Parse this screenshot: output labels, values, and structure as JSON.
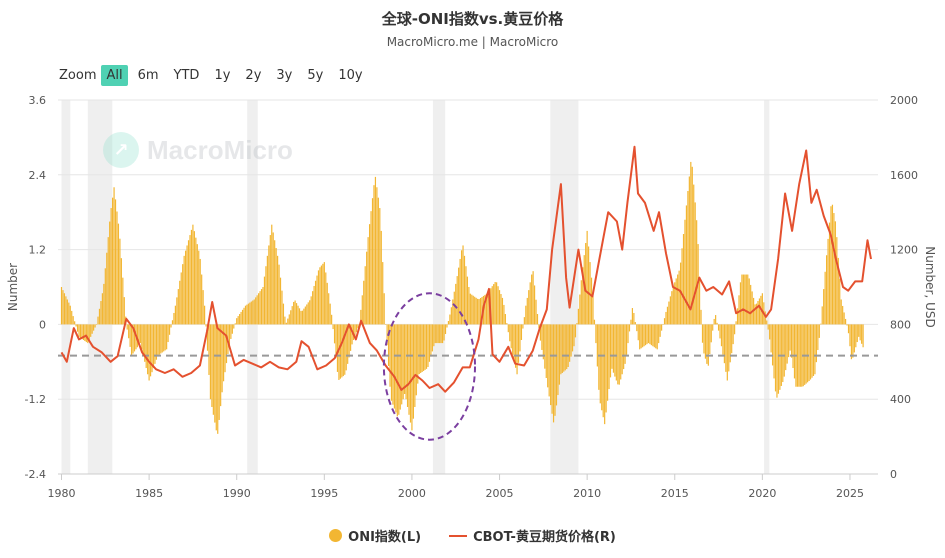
{
  "header": {
    "title": "全球-ONI指数vs.黄豆价格",
    "subtitle": "MacroMicro.me | MacroMicro"
  },
  "zoom": {
    "label": "Zoom",
    "buttons": [
      "All",
      "6m",
      "YTD",
      "1y",
      "2y",
      "3y",
      "5y",
      "10y"
    ],
    "active": "All"
  },
  "watermark": {
    "text": "MacroMicro"
  },
  "colors": {
    "oni": "#f2b632",
    "cbot": "#e4512f",
    "shade": "#efefef",
    "ref_line": "#999999",
    "ellipse": "#7b3fa0"
  },
  "chart_data": {
    "type": "line",
    "x_axis": {
      "type": "year",
      "range": [
        1979.8,
        2026.6
      ],
      "ticks": [
        "1980",
        "1985",
        "1990",
        "1995",
        "2000",
        "2005",
        "2010",
        "2015",
        "2020",
        "2025"
      ]
    },
    "y_left": {
      "label": "Number",
      "range": [
        -2.4,
        3.6
      ],
      "ticks": [
        "3.6",
        "2.4",
        "1.2",
        "0",
        "-1.2",
        "-2.4"
      ]
    },
    "y_right": {
      "label": "Number, USD",
      "range": [
        0,
        2000
      ],
      "ticks": [
        "2000",
        "1600",
        "1200",
        "800",
        "400",
        "0"
      ]
    },
    "reference_line": {
      "axis": "left",
      "value": -0.5,
      "style": "dashed"
    },
    "recessions": [
      [
        1980.0,
        1980.5
      ],
      [
        1981.5,
        1982.9
      ],
      [
        1990.6,
        1991.2
      ],
      [
        2001.2,
        2001.9
      ],
      [
        2007.9,
        2009.5
      ],
      [
        2020.1,
        2020.4
      ]
    ],
    "highlight_ellipse": {
      "x_range": [
        1998.4,
        2003.6
      ],
      "y_left_range": [
        -1.85,
        0.5
      ]
    },
    "series": [
      {
        "name": "ONI指数(L)",
        "type": "column",
        "axis": "left",
        "points": [
          [
            1980.0,
            0.6
          ],
          [
            1980.5,
            0.3
          ],
          [
            1981.0,
            -0.2
          ],
          [
            1981.5,
            -0.3
          ],
          [
            1982.0,
            0.0
          ],
          [
            1982.4,
            0.6
          ],
          [
            1982.8,
            1.8
          ],
          [
            1983.0,
            2.2
          ],
          [
            1983.3,
            1.5
          ],
          [
            1983.7,
            0.0
          ],
          [
            1984.0,
            -0.5
          ],
          [
            1984.5,
            -0.3
          ],
          [
            1985.0,
            -0.9
          ],
          [
            1985.5,
            -0.5
          ],
          [
            1986.0,
            -0.4
          ],
          [
            1986.5,
            0.3
          ],
          [
            1987.0,
            1.1
          ],
          [
            1987.5,
            1.6
          ],
          [
            1987.9,
            1.1
          ],
          [
            1988.2,
            0.2
          ],
          [
            1988.5,
            -1.2
          ],
          [
            1988.9,
            -1.8
          ],
          [
            1989.2,
            -1.0
          ],
          [
            1989.6,
            -0.3
          ],
          [
            1990.0,
            0.1
          ],
          [
            1990.5,
            0.3
          ],
          [
            1991.0,
            0.4
          ],
          [
            1991.5,
            0.6
          ],
          [
            1992.0,
            1.6
          ],
          [
            1992.4,
            1.0
          ],
          [
            1992.8,
            0.0
          ],
          [
            1993.3,
            0.4
          ],
          [
            1993.7,
            0.2
          ],
          [
            1994.2,
            0.4
          ],
          [
            1994.7,
            0.9
          ],
          [
            1995.0,
            1.0
          ],
          [
            1995.4,
            0.2
          ],
          [
            1995.8,
            -0.9
          ],
          [
            1996.2,
            -0.8
          ],
          [
            1996.6,
            -0.3
          ],
          [
            1997.0,
            0.0
          ],
          [
            1997.5,
            1.4
          ],
          [
            1997.9,
            2.4
          ],
          [
            1998.2,
            1.8
          ],
          [
            1998.5,
            0.0
          ],
          [
            1998.8,
            -1.2
          ],
          [
            1999.2,
            -1.5
          ],
          [
            1999.6,
            -1.1
          ],
          [
            2000.0,
            -1.7
          ],
          [
            2000.4,
            -0.8
          ],
          [
            2000.9,
            -0.7
          ],
          [
            2001.3,
            -0.3
          ],
          [
            2001.8,
            -0.3
          ],
          [
            2002.2,
            0.2
          ],
          [
            2002.6,
            0.8
          ],
          [
            2002.9,
            1.3
          ],
          [
            2003.3,
            0.5
          ],
          [
            2003.8,
            0.4
          ],
          [
            2004.3,
            0.5
          ],
          [
            2004.8,
            0.7
          ],
          [
            2005.2,
            0.4
          ],
          [
            2005.6,
            -0.3
          ],
          [
            2006.0,
            -0.8
          ],
          [
            2006.5,
            0.3
          ],
          [
            2006.9,
            0.9
          ],
          [
            2007.3,
            -0.2
          ],
          [
            2007.8,
            -1.1
          ],
          [
            2008.1,
            -1.6
          ],
          [
            2008.5,
            -0.8
          ],
          [
            2008.9,
            -0.7
          ],
          [
            2009.3,
            -0.3
          ],
          [
            2009.7,
            0.8
          ],
          [
            2010.0,
            1.5
          ],
          [
            2010.3,
            0.6
          ],
          [
            2010.7,
            -1.2
          ],
          [
            2011.0,
            -1.6
          ],
          [
            2011.4,
            -0.7
          ],
          [
            2011.8,
            -1.0
          ],
          [
            2012.2,
            -0.6
          ],
          [
            2012.6,
            0.3
          ],
          [
            2013.0,
            -0.4
          ],
          [
            2013.5,
            -0.3
          ],
          [
            2014.0,
            -0.4
          ],
          [
            2014.5,
            0.2
          ],
          [
            2014.9,
            0.6
          ],
          [
            2015.3,
            0.9
          ],
          [
            2015.7,
            2.0
          ],
          [
            2015.95,
            2.7
          ],
          [
            2016.3,
            1.5
          ],
          [
            2016.6,
            -0.4
          ],
          [
            2016.9,
            -0.7
          ],
          [
            2017.3,
            0.2
          ],
          [
            2017.7,
            -0.4
          ],
          [
            2018.0,
            -0.9
          ],
          [
            2018.4,
            -0.2
          ],
          [
            2018.8,
            0.8
          ],
          [
            2019.2,
            0.8
          ],
          [
            2019.6,
            0.3
          ],
          [
            2020.0,
            0.5
          ],
          [
            2020.4,
            -0.2
          ],
          [
            2020.8,
            -1.2
          ],
          [
            2021.2,
            -0.9
          ],
          [
            2021.6,
            -0.4
          ],
          [
            2021.9,
            -1.0
          ],
          [
            2022.3,
            -1.0
          ],
          [
            2022.7,
            -0.9
          ],
          [
            2023.0,
            -0.8
          ],
          [
            2023.3,
            -0.1
          ],
          [
            2023.6,
            0.9
          ],
          [
            2023.95,
            2.0
          ],
          [
            2024.2,
            1.6
          ],
          [
            2024.5,
            0.4
          ],
          [
            2024.9,
            -0.1
          ],
          [
            2025.1,
            -0.6
          ],
          [
            2025.5,
            -0.2
          ],
          [
            2025.8,
            -0.4
          ]
        ]
      },
      {
        "name": "CBOT-黄豆期货价格(R)",
        "type": "line",
        "axis": "right",
        "points": [
          [
            1980.0,
            650
          ],
          [
            1980.3,
            600
          ],
          [
            1980.7,
            780
          ],
          [
            1981.0,
            720
          ],
          [
            1981.4,
            740
          ],
          [
            1981.8,
            680
          ],
          [
            1982.3,
            650
          ],
          [
            1982.8,
            600
          ],
          [
            1983.2,
            630
          ],
          [
            1983.7,
            830
          ],
          [
            1984.1,
            780
          ],
          [
            1984.6,
            650
          ],
          [
            1985.0,
            600
          ],
          [
            1985.4,
            560
          ],
          [
            1985.9,
            540
          ],
          [
            1986.4,
            560
          ],
          [
            1986.9,
            520
          ],
          [
            1987.4,
            540
          ],
          [
            1987.9,
            580
          ],
          [
            1988.3,
            760
          ],
          [
            1988.6,
            920
          ],
          [
            1988.9,
            780
          ],
          [
            1989.4,
            740
          ],
          [
            1989.9,
            580
          ],
          [
            1990.4,
            610
          ],
          [
            1990.9,
            590
          ],
          [
            1991.4,
            570
          ],
          [
            1991.9,
            600
          ],
          [
            1992.4,
            570
          ],
          [
            1992.9,
            560
          ],
          [
            1993.4,
            600
          ],
          [
            1993.7,
            710
          ],
          [
            1994.1,
            680
          ],
          [
            1994.6,
            560
          ],
          [
            1995.1,
            580
          ],
          [
            1995.6,
            620
          ],
          [
            1996.0,
            700
          ],
          [
            1996.4,
            800
          ],
          [
            1996.8,
            720
          ],
          [
            1997.1,
            820
          ],
          [
            1997.6,
            700
          ],
          [
            1998.0,
            660
          ],
          [
            1998.5,
            580
          ],
          [
            1999.0,
            520
          ],
          [
            1999.4,
            450
          ],
          [
            1999.8,
            480
          ],
          [
            2000.2,
            530
          ],
          [
            2000.6,
            500
          ],
          [
            2001.0,
            460
          ],
          [
            2001.5,
            480
          ],
          [
            2001.9,
            440
          ],
          [
            2002.4,
            490
          ],
          [
            2002.9,
            570
          ],
          [
            2003.3,
            570
          ],
          [
            2003.8,
            720
          ],
          [
            2004.1,
            900
          ],
          [
            2004.4,
            990
          ],
          [
            2004.6,
            640
          ],
          [
            2005.0,
            600
          ],
          [
            2005.5,
            680
          ],
          [
            2005.9,
            590
          ],
          [
            2006.4,
            580
          ],
          [
            2006.9,
            660
          ],
          [
            2007.3,
            780
          ],
          [
            2007.7,
            880
          ],
          [
            2008.0,
            1200
          ],
          [
            2008.5,
            1550
          ],
          [
            2008.8,
            1050
          ],
          [
            2009.0,
            890
          ],
          [
            2009.5,
            1200
          ],
          [
            2009.9,
            980
          ],
          [
            2010.3,
            950
          ],
          [
            2010.9,
            1250
          ],
          [
            2011.2,
            1400
          ],
          [
            2011.7,
            1350
          ],
          [
            2012.0,
            1200
          ],
          [
            2012.3,
            1450
          ],
          [
            2012.7,
            1750
          ],
          [
            2012.9,
            1500
          ],
          [
            2013.3,
            1450
          ],
          [
            2013.8,
            1300
          ],
          [
            2014.1,
            1400
          ],
          [
            2014.5,
            1180
          ],
          [
            2014.9,
            1000
          ],
          [
            2015.3,
            980
          ],
          [
            2015.9,
            880
          ],
          [
            2016.4,
            1050
          ],
          [
            2016.8,
            980
          ],
          [
            2017.2,
            1000
          ],
          [
            2017.7,
            960
          ],
          [
            2018.1,
            1030
          ],
          [
            2018.5,
            860
          ],
          [
            2018.9,
            880
          ],
          [
            2019.3,
            860
          ],
          [
            2019.8,
            900
          ],
          [
            2020.2,
            840
          ],
          [
            2020.5,
            880
          ],
          [
            2020.9,
            1150
          ],
          [
            2021.3,
            1500
          ],
          [
            2021.7,
            1300
          ],
          [
            2022.1,
            1550
          ],
          [
            2022.5,
            1730
          ],
          [
            2022.8,
            1450
          ],
          [
            2023.1,
            1520
          ],
          [
            2023.5,
            1380
          ],
          [
            2023.9,
            1280
          ],
          [
            2024.2,
            1150
          ],
          [
            2024.6,
            1000
          ],
          [
            2024.9,
            980
          ],
          [
            2025.3,
            1030
          ],
          [
            2025.7,
            1030
          ],
          [
            2026.0,
            1250
          ],
          [
            2026.2,
            1150
          ]
        ]
      }
    ]
  },
  "legend": {
    "items": [
      {
        "label": "ONI指数(L)",
        "kind": "dot"
      },
      {
        "label": "CBOT-黄豆期货价格(R)",
        "kind": "line"
      }
    ]
  }
}
